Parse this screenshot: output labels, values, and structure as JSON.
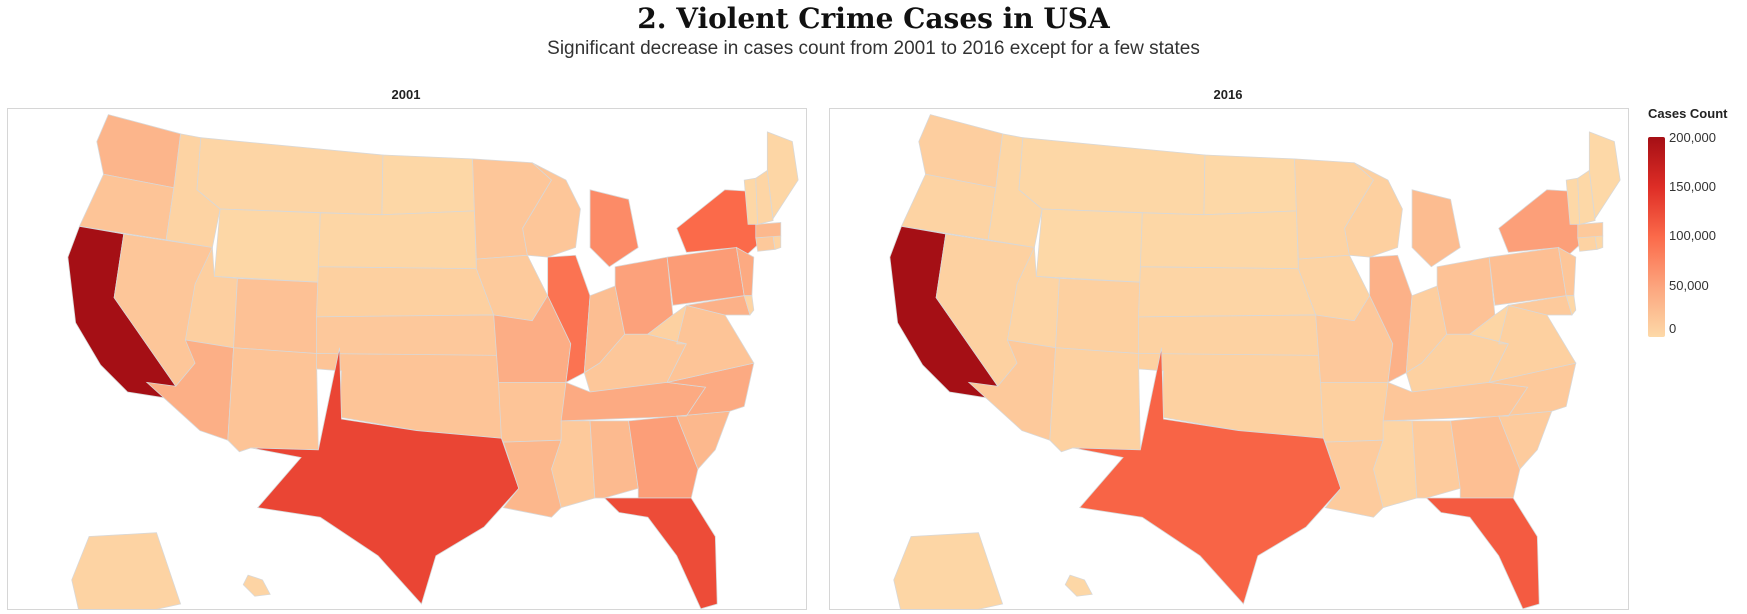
{
  "title": "2. Violent Crime Cases in USA",
  "subtitle": "Significant decrease in cases count from 2001 to 2016 except for a few states",
  "legend": {
    "title": "Cases Count",
    "ticks": [
      "200,000",
      "150,000",
      "100,000",
      "50,000",
      "0"
    ],
    "colors": [
      "#a50f15",
      "#de2d26",
      "#fb6a4a",
      "#fca57e",
      "#fdd9a8"
    ]
  },
  "chart_data": {
    "type": "choropleth",
    "value_label": "Cases Count",
    "value_range": [
      0,
      200000
    ],
    "panels": [
      {
        "label": "2001",
        "values": {
          "CA": 200000,
          "TX": 130000,
          "FL": 125000,
          "NY": 100000,
          "IL": 92000,
          "MI": 72000,
          "PA": 58000,
          "GA": 56000,
          "OH": 53000,
          "NJ": 45000,
          "NC": 45000,
          "TN": 45000,
          "MO": 42000,
          "AZ": 40000,
          "MD": 38000,
          "WA": 35000,
          "LA": 33000,
          "SC": 32000,
          "MA": 32000,
          "AL": 30000,
          "IN": 26000,
          "CO": 23000,
          "OK": 20000,
          "NM": 20000,
          "AR": 20000,
          "OR": 20000,
          "VA": 20000,
          "NV": 18000,
          "MN": 18000,
          "WI": 18000,
          "KY": 17000,
          "KS": 16000,
          "CT": 15000,
          "MS": 15000,
          "IA": 14000,
          "UT": 10000,
          "NE": 9000,
          "WV": 8000,
          "ID": 6000,
          "AK": 6000,
          "HI": 5000,
          "DE": 5000,
          "RI": 5000,
          "NH": 4000,
          "MT": 4000,
          "ME": 3000,
          "SD": 3000,
          "ND": 2000,
          "WY": 2000,
          "VT": 2000
        }
      },
      {
        "label": "2016",
        "values": {
          "CA": 200000,
          "TX": 105000,
          "FL": 112000,
          "NY": 55000,
          "IL": 38000,
          "MI": 28000,
          "PA": 25000,
          "GA": 25000,
          "OH": 22000,
          "NJ": 18000,
          "NC": 15000,
          "TN": 18000,
          "MO": 16000,
          "AZ": 15000,
          "MD": 14000,
          "WA": 11000,
          "LA": 13000,
          "SC": 13000,
          "MA": 15000,
          "AL": 13000,
          "IN": 11000,
          "CO": 9000,
          "OK": 8000,
          "NM": 8000,
          "AR": 9000,
          "OR": 6000,
          "VA": 9000,
          "NV": 8000,
          "MN": 6000,
          "WI": 9000,
          "KY": 8000,
          "KS": 7000,
          "CT": 6000,
          "MS": 5000,
          "IA": 6000,
          "UT": 5000,
          "NE": 4000,
          "WV": 3000,
          "ID": 3000,
          "AK": 3000,
          "HI": 2000,
          "DE": 2000,
          "RI": 2000,
          "NH": 1000,
          "MT": 2000,
          "ME": 1000,
          "SD": 2000,
          "ND": 1000,
          "WY": 1000,
          "VT": 1000
        }
      }
    ]
  }
}
